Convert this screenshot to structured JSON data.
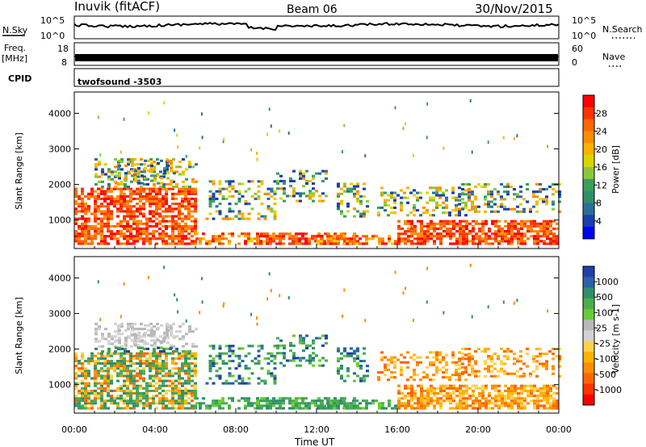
{
  "header": {
    "station": "Inuvik (fitACF)",
    "beam": "Beam 06",
    "date": "30/Nov/2015"
  },
  "top_panels": {
    "nsky_label": "N.Sky",
    "nsky_ticks": [
      "10^5",
      "10^0"
    ],
    "nsearch_label": "N.Search",
    "nsearch_ticks": [
      "10^5",
      "10^0"
    ],
    "freq_label": "Freq.",
    "freq_unit": "[MHz]",
    "freq_ticks": [
      "18",
      "8"
    ],
    "nave_label": "Nave",
    "nave_ticks": [
      "60",
      "0"
    ],
    "cpid_label": "CPID",
    "cpid_value": "twofsound -3503"
  },
  "chart_data": [
    {
      "type": "heatmap",
      "panel": "power",
      "xlabel": "",
      "ylabel": "Slant Range [km]",
      "xlim": [
        0,
        24
      ],
      "ylim": [
        200,
        4600
      ],
      "yticks": [
        "1000",
        "2000",
        "3000",
        "4000"
      ],
      "colorbar": {
        "label": "Power [dB]",
        "ticks": [
          "28",
          "24",
          "20",
          "16",
          "12",
          "8",
          "4"
        ],
        "colors": [
          "#ff0000",
          "#ff3300",
          "#ff6600",
          "#ff8c00",
          "#ffb300",
          "#d7d700",
          "#8cc83c",
          "#3c9f5a",
          "#2f8f6a",
          "#2a6f9a",
          "#1a3fb0",
          "#0000ff"
        ]
      }
    },
    {
      "type": "heatmap",
      "panel": "velocity",
      "xlabel": "Time UT",
      "ylabel": "Slant Range [km]",
      "xlim": [
        0,
        24
      ],
      "ylim": [
        200,
        4600
      ],
      "xticks": [
        "00:00",
        "04:00",
        "08:00",
        "12:00",
        "16:00",
        "20:00",
        "00:00"
      ],
      "yticks": [
        "1000",
        "2000",
        "3000",
        "4000"
      ],
      "colorbar": {
        "label": "Velocity [m s-1]",
        "ticks": [
          "1000",
          "500",
          "100",
          "25",
          "-25",
          "-100",
          "-500",
          "-1000"
        ],
        "colors": [
          "#1f3fa8",
          "#2a62a8",
          "#2f8f6a",
          "#4cae4c",
          "#66cc33",
          "#b8b8b8",
          "#d2d2d2",
          "#ffd24d",
          "#ffb300",
          "#ff8c00",
          "#ff6600",
          "#ff3300",
          "#ff0000"
        ]
      }
    }
  ]
}
